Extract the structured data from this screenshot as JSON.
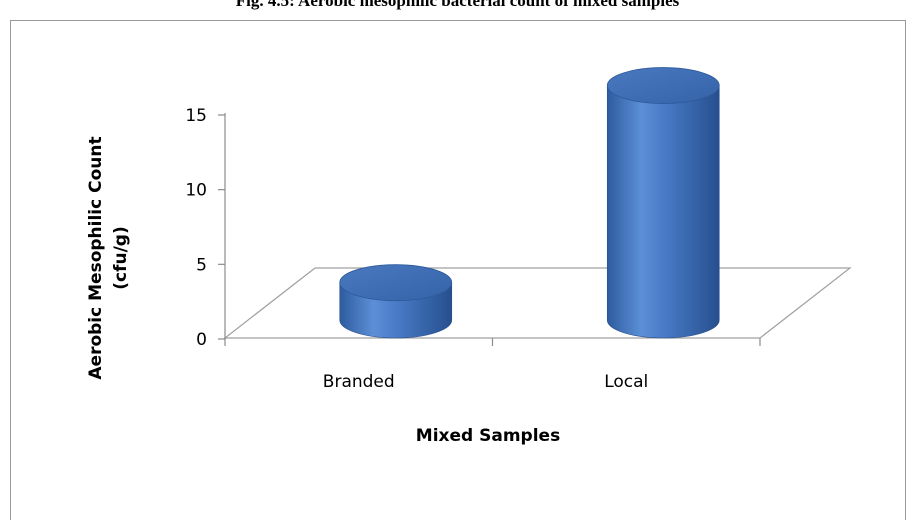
{
  "figure": {
    "caption": "Fig. 4.5: Aerobic mesophilic bacterial count of mixed samples"
  },
  "chart_data": {
    "type": "bar",
    "style": "3d-cylinder",
    "title": "",
    "categories": [
      "Branded",
      "Local"
    ],
    "values": [
      2.5,
      15.7
    ],
    "xlabel": "Mixed Samples",
    "ylabel_lines": [
      "Aerobic Mesophilic Count",
      "(cfu/g)"
    ],
    "ylim": [
      0,
      15
    ],
    "yticks": [
      0,
      5,
      10,
      15
    ],
    "ytick_labels": [
      "0",
      "5",
      "10",
      "15"
    ],
    "grid": false,
    "legend": "none",
    "colors": {
      "bar_side_light": "#5b8fd6",
      "bar_side_dark": "#2a5597",
      "bar_top": "#3f6db4",
      "floor_line": "#a0a0a0",
      "axis_line": "#8c8c8c"
    }
  }
}
